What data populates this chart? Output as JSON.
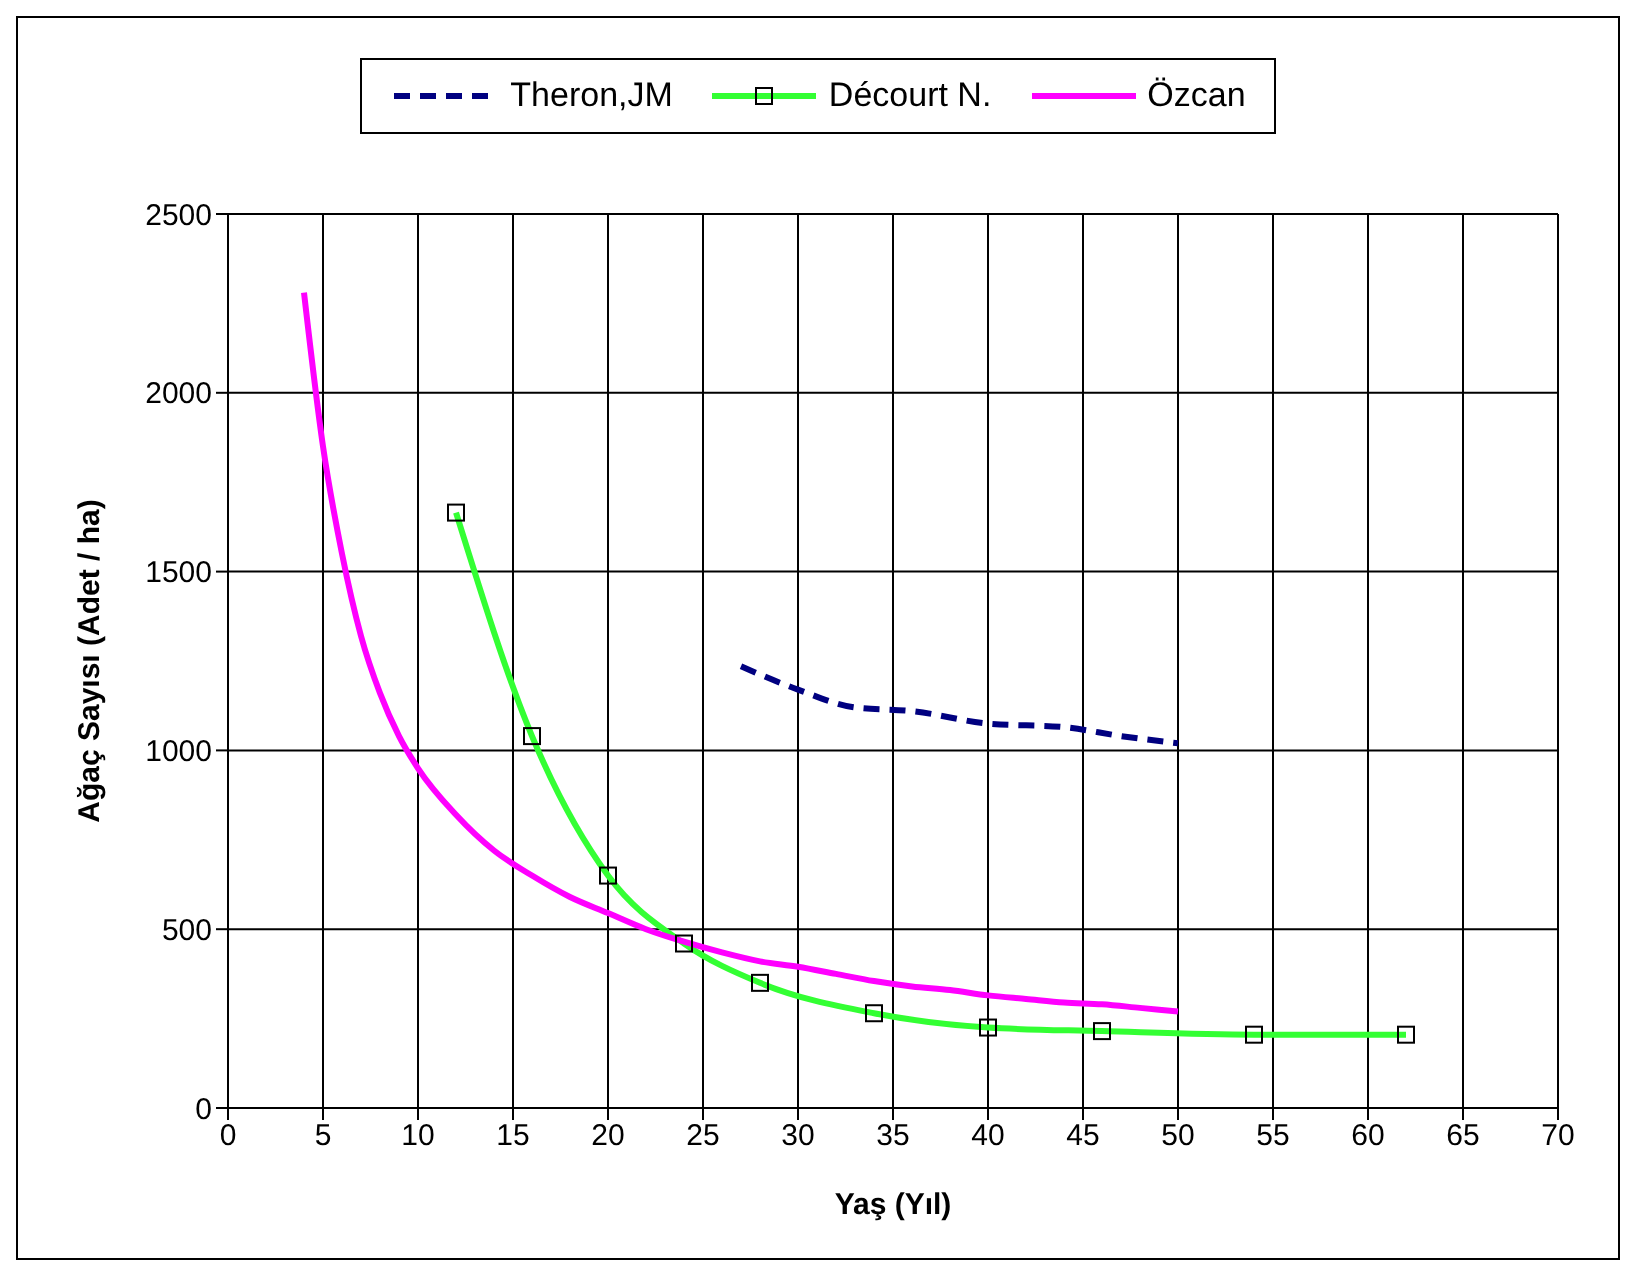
{
  "chart_data": {
    "type": "line",
    "xlabel": "Yaş (Yıl)",
    "ylabel": "Ağaç Sayısı (Adet / ha)",
    "xlim": [
      0,
      70
    ],
    "xticks": [
      0,
      5,
      10,
      15,
      20,
      25,
      30,
      35,
      40,
      45,
      50,
      55,
      60,
      65,
      70
    ],
    "ylim": [
      0,
      2500
    ],
    "yticks": [
      0,
      500,
      1000,
      1500,
      2000,
      2500
    ],
    "grid": true,
    "legend": "top",
    "marker": "none",
    "series": [
      {
        "name": "Theron,JM",
        "color": "#000080",
        "line_style": "dashed",
        "x": [
          27,
          30,
          33,
          36,
          40,
          44,
          47,
          50
        ],
        "values": [
          1235,
          1170,
          1120,
          1110,
          1075,
          1065,
          1040,
          1020
        ]
      },
      {
        "name": "Décourt N.",
        "color": "#33ff33",
        "marker": "square",
        "line_style": "solid",
        "x": [
          12,
          16,
          20,
          24,
          28,
          34,
          40,
          46,
          54,
          62
        ],
        "values": [
          1665,
          1040,
          650,
          460,
          350,
          265,
          225,
          215,
          205,
          205
        ]
      },
      {
        "name": "Özcan",
        "color": "#ff00ff",
        "line_style": "solid",
        "x": [
          4,
          5,
          6,
          7,
          8,
          9,
          10,
          12,
          14,
          16,
          18,
          20,
          22,
          24,
          26,
          28,
          30,
          32,
          34,
          36,
          38,
          40,
          42,
          44,
          46,
          48,
          50
        ],
        "values": [
          2280,
          1850,
          1550,
          1320,
          1160,
          1040,
          950,
          820,
          720,
          650,
          590,
          545,
          500,
          465,
          435,
          410,
          395,
          375,
          355,
          340,
          330,
          315,
          305,
          295,
          290,
          280,
          270
        ]
      }
    ]
  }
}
